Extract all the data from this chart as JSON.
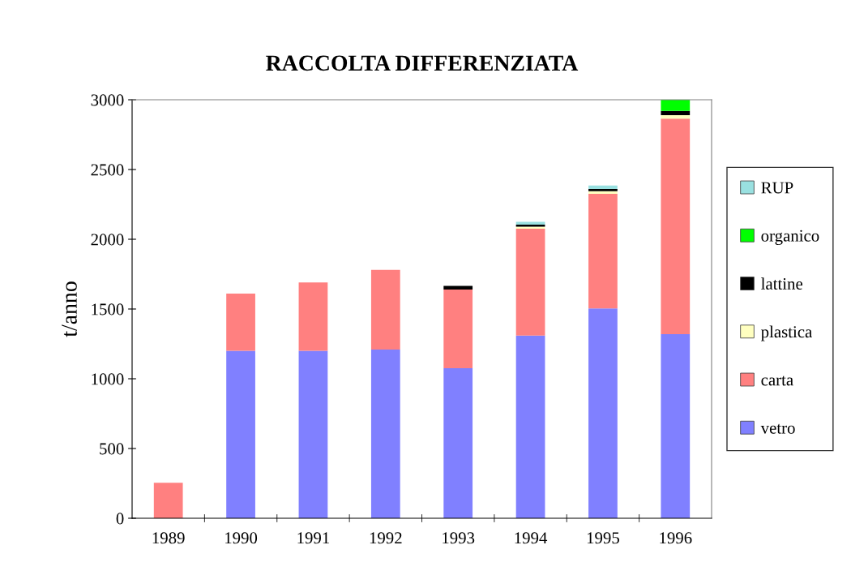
{
  "chart_data": {
    "type": "bar",
    "title": "RACCOLTA DIFFERENZIATA",
    "ylabel": "t/anno",
    "categories": [
      "1989",
      "1990",
      "1991",
      "1992",
      "1993",
      "1994",
      "1995",
      "1996"
    ],
    "stacked": true,
    "ylim": [
      0,
      3000
    ],
    "yticks": [
      0,
      500,
      1000,
      1500,
      2000,
      2500,
      3000
    ],
    "grid": false,
    "legend": "right",
    "series": [
      {
        "name": "vetro",
        "color": "#8080ff",
        "values": [
          0,
          1200,
          1200,
          1210,
          1075,
          1310,
          1505,
          1320
        ]
      },
      {
        "name": "carta",
        "color": "#ff8080",
        "values": [
          255,
          410,
          490,
          570,
          565,
          765,
          820,
          1545
        ]
      },
      {
        "name": "plastica",
        "color": "#ffffc0",
        "values": [
          0,
          0,
          0,
          0,
          0,
          15,
          20,
          25
        ]
      },
      {
        "name": "lattine",
        "color": "#000000",
        "values": [
          0,
          0,
          0,
          0,
          25,
          15,
          15,
          30
        ]
      },
      {
        "name": "organico",
        "color": "#00ff00",
        "values": [
          0,
          0,
          0,
          0,
          0,
          0,
          0,
          80
        ]
      },
      {
        "name": "RUP",
        "color": "#99e0e0",
        "values": [
          0,
          0,
          0,
          0,
          0,
          20,
          25,
          0
        ]
      }
    ]
  }
}
